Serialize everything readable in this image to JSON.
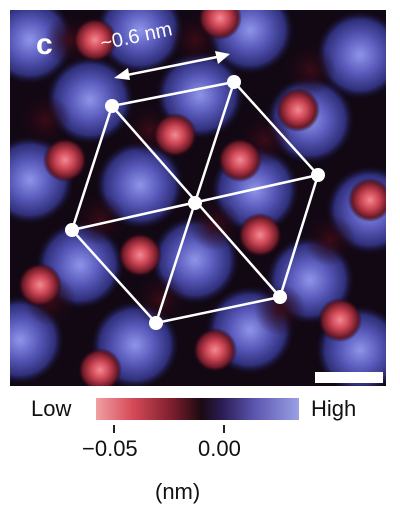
{
  "panel_letter": "c",
  "scale_annotation": "~0.6 nm",
  "colorbar": {
    "low_label": "Low",
    "high_label": "High",
    "tick_labels": [
      "−0.05",
      "0.00"
    ],
    "unit": "(nm)",
    "colors": [
      "#f0a0a4",
      "#d64a58",
      "#7a1d2c",
      "#1b0a12",
      "#2a1c54",
      "#5b55ae",
      "#9aa0e6"
    ]
  },
  "colors": {
    "high_blob": "#4b4bb0",
    "low_spot": "#d54a58",
    "background": "#0d0612",
    "overlay_lines": "#ffffff"
  }
}
